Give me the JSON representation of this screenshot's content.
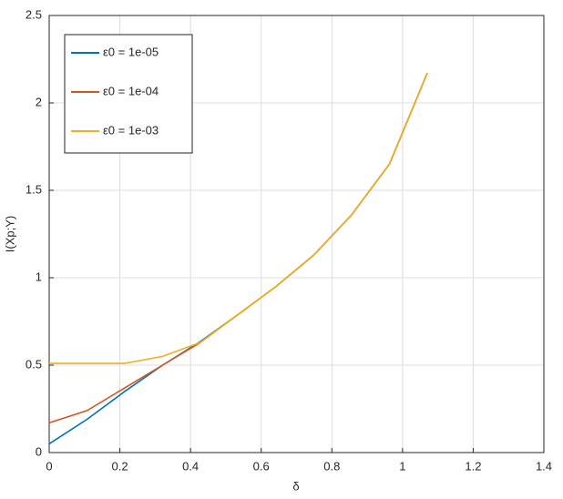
{
  "chart_data": {
    "type": "line",
    "xlabel": "δ",
    "ylabel": "I(Xp;Y)",
    "x": [
      0,
      0.107,
      0.214,
      0.321,
      0.428,
      0.535,
      0.642,
      0.749,
      0.856,
      0.963,
      1.07
    ],
    "series": [
      {
        "name": "ε0 = 1e-05",
        "color": "#0072bd",
        "values": [
          0.05,
          0.19,
          0.35,
          0.5,
          0.635,
          0.79,
          0.95,
          1.13,
          1.36,
          1.65,
          2.17
        ]
      },
      {
        "name": "ε0 = 1e-04",
        "color": "#d95319",
        "values": [
          0.17,
          0.24,
          0.37,
          0.5,
          0.63,
          0.79,
          0.95,
          1.13,
          1.36,
          1.65,
          2.17
        ]
      },
      {
        "name": "ε0 = 1e-03",
        "color": "#edb120",
        "values": [
          0.51,
          0.51,
          0.51,
          0.55,
          0.63,
          0.79,
          0.95,
          1.13,
          1.36,
          1.65,
          2.17
        ]
      }
    ],
    "xlim": [
      0,
      1.4
    ],
    "xticks": [
      0,
      0.2,
      0.4,
      0.6,
      0.8,
      1,
      1.2,
      1.4
    ],
    "ylim": [
      0,
      2.5
    ],
    "yticks": [
      0,
      0.5,
      1,
      1.5,
      2,
      2.5
    ],
    "grid": true,
    "legend": "upper-left"
  }
}
